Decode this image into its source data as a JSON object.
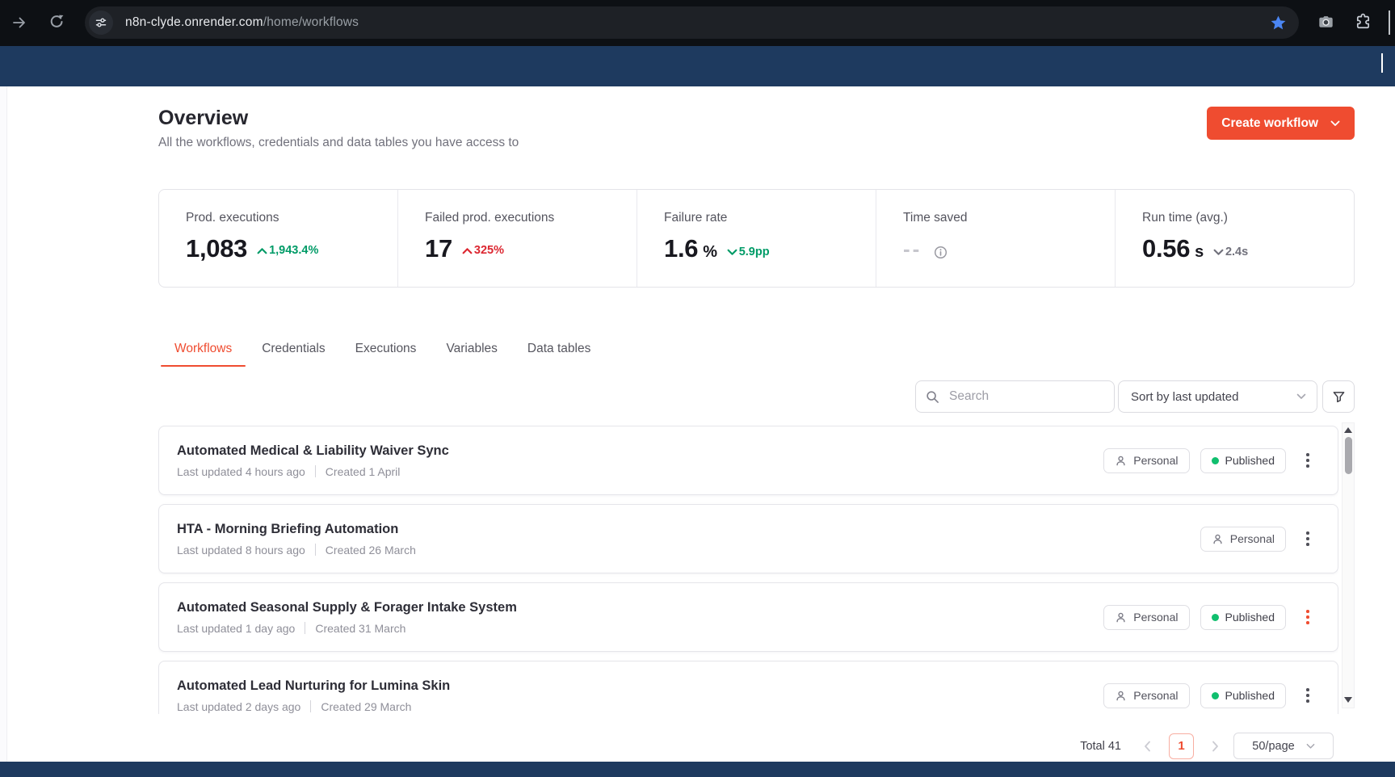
{
  "browser": {
    "url_domain": "n8n-clyde.onrender.com",
    "url_path": "/home/workflows"
  },
  "header": {
    "title": "Overview",
    "subtitle": "All the workflows, credentials and data tables you have access to",
    "create_button": "Create workflow"
  },
  "stats": [
    {
      "label": "Prod. executions",
      "value": "1,083",
      "unit": "",
      "delta": "1,943.4%",
      "direction": "up",
      "trend": "positive",
      "info": false
    },
    {
      "label": "Failed prod. executions",
      "value": "17",
      "unit": "",
      "delta": "325%",
      "direction": "up",
      "trend": "negative",
      "info": false
    },
    {
      "label": "Failure rate",
      "value": "1.6",
      "unit": "%",
      "delta": "5.9pp",
      "direction": "down",
      "trend": "positive",
      "info": false
    },
    {
      "label": "Time saved",
      "value": "--",
      "unit": "",
      "delta": "",
      "direction": "",
      "trend": "",
      "info": true
    },
    {
      "label": "Run time (avg.)",
      "value": "0.56",
      "unit": "s",
      "delta": "2.4s",
      "direction": "down",
      "trend": "neutral",
      "info": false
    }
  ],
  "tabs": [
    {
      "label": "Workflows",
      "active": true
    },
    {
      "label": "Credentials",
      "active": false
    },
    {
      "label": "Executions",
      "active": false
    },
    {
      "label": "Variables",
      "active": false
    },
    {
      "label": "Data tables",
      "active": false
    }
  ],
  "toolbar": {
    "search_placeholder": "Search",
    "sort_label": "Sort by last updated"
  },
  "workflows": [
    {
      "title": "Automated Medical & Liability Waiver Sync",
      "updated": "Last updated 4 hours ago",
      "created": "Created 1 April",
      "owner": "Personal",
      "status": "Published",
      "published": true,
      "menu_highlighted": false
    },
    {
      "title": "HTA - Morning Briefing Automation",
      "updated": "Last updated 8 hours ago",
      "created": "Created 26 March",
      "owner": "Personal",
      "status": "",
      "published": false,
      "menu_highlighted": false
    },
    {
      "title": "Automated Seasonal Supply & Forager Intake System",
      "updated": "Last updated 1 day ago",
      "created": "Created 31 March",
      "owner": "Personal",
      "status": "Published",
      "published": true,
      "menu_highlighted": true
    },
    {
      "title": "Automated Lead Nurturing for Lumina Skin",
      "updated": "Last updated 2 days ago",
      "created": "Created 29 March",
      "owner": "Personal",
      "status": "Published",
      "published": true,
      "menu_highlighted": false
    }
  ],
  "pagination": {
    "total_label": "Total 41",
    "page": "1",
    "page_size": "50/page"
  },
  "colors": {
    "accent": "#ef4c30",
    "positive": "#009b67",
    "negative": "#dc2731",
    "published_dot": "#10bf6e",
    "band": "#1e3a5f",
    "bookmark_star": "#4b86f3"
  }
}
